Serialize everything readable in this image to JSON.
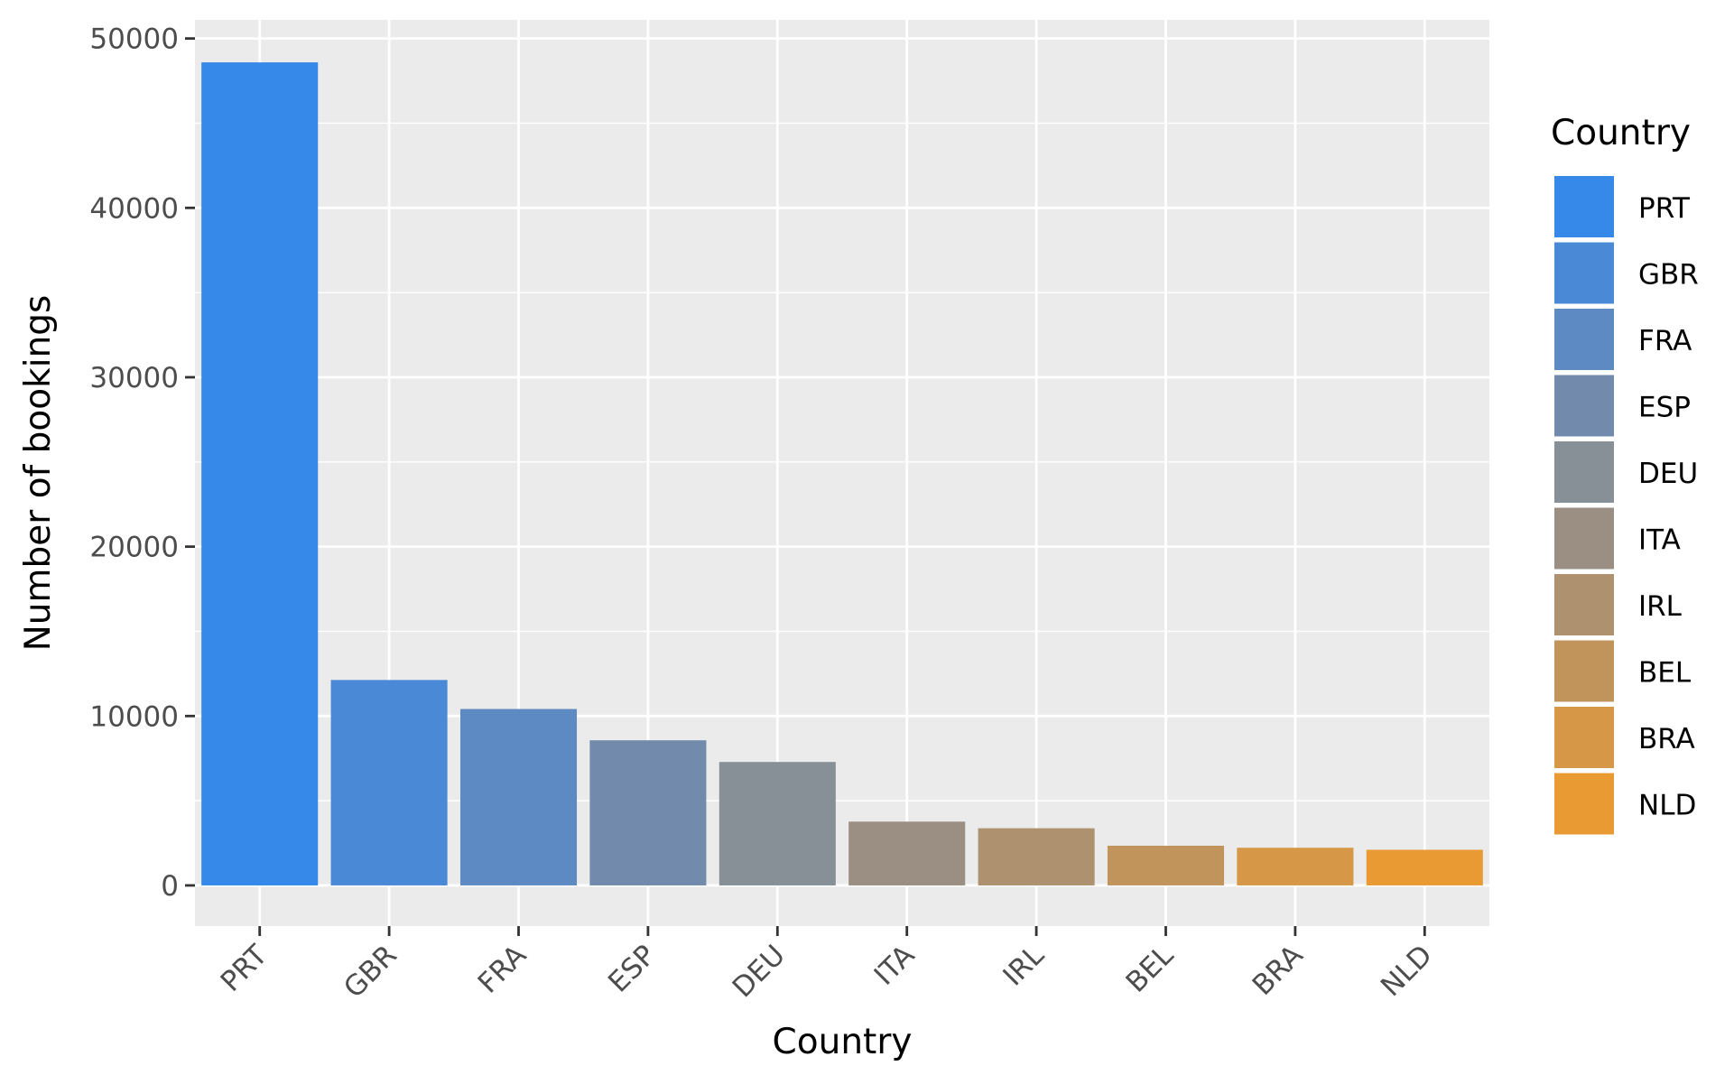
{
  "chart_data": {
    "type": "bar",
    "title": "",
    "xlabel": "Country",
    "ylabel": "Number of bookings",
    "categories": [
      "PRT",
      "GBR",
      "FRA",
      "ESP",
      "DEU",
      "ITA",
      "IRL",
      "BEL",
      "BRA",
      "NLD"
    ],
    "values": [
      48590,
      12129,
      10415,
      8568,
      7287,
      3766,
      3375,
      2342,
      2224,
      2104
    ],
    "ylim": [
      -2400,
      51100
    ],
    "yticks": [
      0,
      10000,
      20000,
      30000,
      40000,
      50000
    ],
    "ytick_labels": [
      "0",
      "10000",
      "20000",
      "30000",
      "40000",
      "50000"
    ],
    "grid": true,
    "panel_background": "#EBEBEB",
    "colors": [
      "#3689E8",
      "#4A89D6",
      "#5E8AC3",
      "#728BAC",
      "#878F97",
      "#9B8F83",
      "#AE926F",
      "#C1945C",
      "#D69847",
      "#EA9A32"
    ],
    "legend": {
      "title": "Country",
      "position": "right",
      "entries": [
        "PRT",
        "GBR",
        "FRA",
        "ESP",
        "DEU",
        "ITA",
        "IRL",
        "BEL",
        "BRA",
        "NLD"
      ]
    }
  }
}
